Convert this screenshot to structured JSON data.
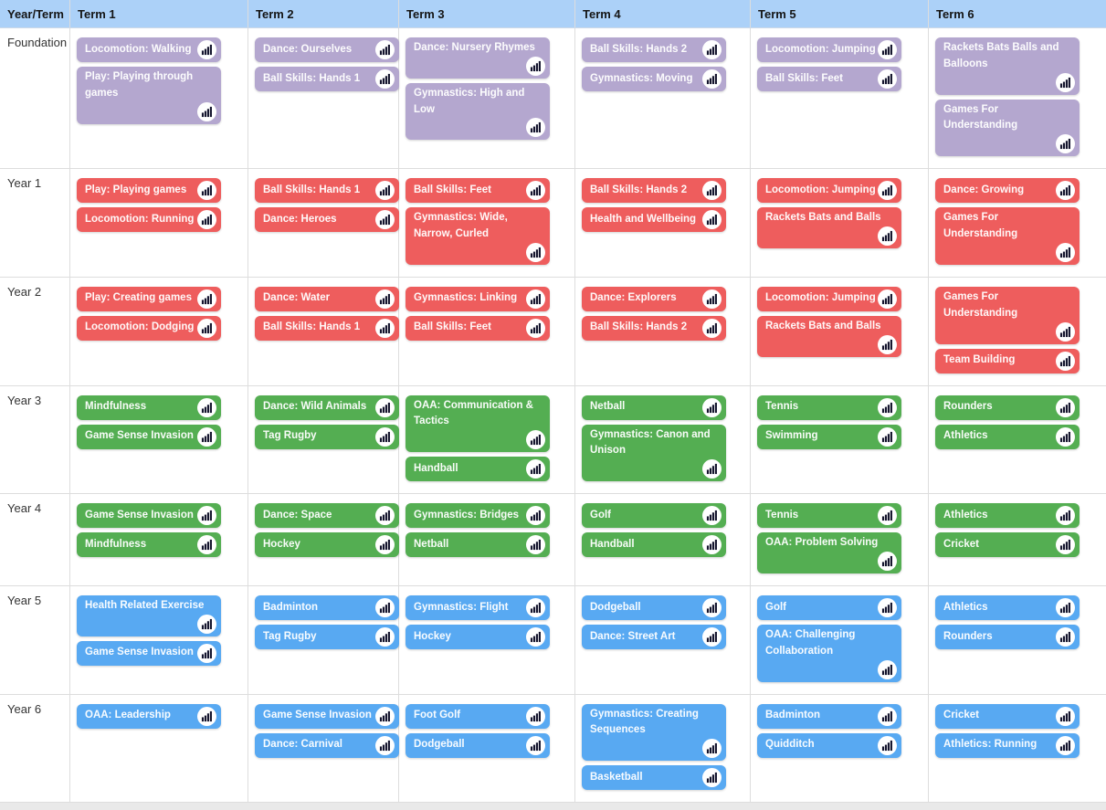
{
  "table": {
    "columns": [
      "Year/Term",
      "Term 1",
      "Term 2",
      "Term 3",
      "Term 4",
      "Term 5",
      "Term 6"
    ],
    "rows": [
      {
        "label": "Foundation",
        "pill_color": "#b4a7cf",
        "terms": [
          [
            "Locomotion: Walking",
            "Play: Playing through games"
          ],
          [
            "Dance: Ourselves",
            "Ball Skills: Hands 1"
          ],
          [
            "Dance: Nursery Rhymes",
            "Gymnastics: High and Low"
          ],
          [
            "Ball Skills: Hands 2",
            "Gymnastics: Moving"
          ],
          [
            "Locomotion: Jumping",
            "Ball Skills: Feet"
          ],
          [
            "Rackets Bats Balls and Balloons",
            "Games For Understanding"
          ]
        ]
      },
      {
        "label": "Year 1",
        "pill_color": "#ee5d5d",
        "terms": [
          [
            "Play: Playing games",
            "Locomotion: Running"
          ],
          [
            "Ball Skills: Hands 1",
            "Dance: Heroes"
          ],
          [
            "Ball Skills: Feet",
            "Gymnastics: Wide, Narrow, Curled"
          ],
          [
            "Ball Skills: Hands 2",
            "Health and Wellbeing"
          ],
          [
            "Locomotion: Jumping",
            "Rackets Bats and Balls"
          ],
          [
            "Dance: Growing",
            "Games For Understanding"
          ]
        ]
      },
      {
        "label": "Year 2",
        "pill_color": "#ee5d5d",
        "terms": [
          [
            "Play: Creating games",
            "Locomotion: Dodging"
          ],
          [
            "Dance: Water",
            "Ball Skills: Hands 1"
          ],
          [
            "Gymnastics: Linking",
            "Ball Skills: Feet"
          ],
          [
            "Dance: Explorers",
            "Ball Skills: Hands 2"
          ],
          [
            "Locomotion: Jumping",
            "Rackets Bats and Balls"
          ],
          [
            "Games For Understanding",
            "Team Building"
          ]
        ]
      },
      {
        "label": "Year 3",
        "pill_color": "#54ae52",
        "terms": [
          [
            "Mindfulness",
            "Game Sense Invasion"
          ],
          [
            "Dance: Wild Animals",
            "Tag Rugby"
          ],
          [
            "OAA: Communication & Tactics",
            "Handball"
          ],
          [
            "Netball",
            "Gymnastics: Canon and Unison"
          ],
          [
            "Tennis",
            "Swimming"
          ],
          [
            "Rounders",
            "Athletics"
          ]
        ]
      },
      {
        "label": "Year 4",
        "pill_color": "#54ae52",
        "terms": [
          [
            "Game Sense Invasion",
            "Mindfulness"
          ],
          [
            "Dance: Space",
            "Hockey"
          ],
          [
            "Gymnastics: Bridges",
            "Netball"
          ],
          [
            "Golf",
            "Handball"
          ],
          [
            "Tennis",
            "OAA: Problem Solving"
          ],
          [
            "Athletics",
            "Cricket"
          ]
        ]
      },
      {
        "label": "Year 5",
        "pill_color": "#58a9f2",
        "terms": [
          [
            "Health Related Exercise",
            "Game Sense Invasion"
          ],
          [
            "Badminton",
            "Tag Rugby"
          ],
          [
            "Gymnastics: Flight",
            "Hockey"
          ],
          [
            "Dodgeball",
            "Dance: Street Art"
          ],
          [
            "Golf",
            "OAA: Challenging Collaboration"
          ],
          [
            "Athletics",
            "Rounders"
          ]
        ]
      },
      {
        "label": "Year 6",
        "pill_color": "#58a9f2",
        "terms": [
          [
            "OAA: Leadership"
          ],
          [
            "Game Sense Invasion",
            "Dance: Carnival"
          ],
          [
            "Foot Golf",
            "Dodgeball"
          ],
          [
            "Gymnastics: Creating Sequences",
            "Basketball"
          ],
          [
            "Badminton",
            "Quidditch"
          ],
          [
            "Cricket",
            "Athletics: Running"
          ]
        ]
      }
    ]
  },
  "icon": {
    "name": "bar-chart-icon",
    "bar_color": "#15152e",
    "background": "#ffffff"
  },
  "colors": {
    "header_bg": "#acd1f8",
    "header_text": "#141414",
    "border": "#dddddd",
    "row_label_text": "#333333",
    "pill_text": "#ffffff",
    "foundation_purple": "#b4a7cf",
    "ks1_red": "#ee5d5d",
    "lks2_green": "#54ae52",
    "uks2_blue": "#58a9f2",
    "bottom_strip": "#e9e9e9"
  }
}
